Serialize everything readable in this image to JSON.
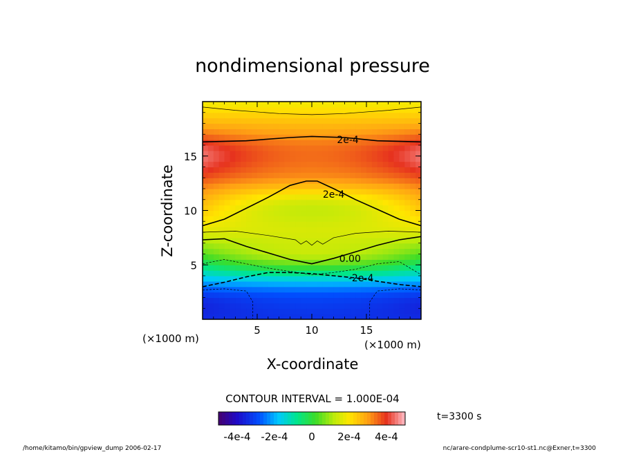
{
  "chart_data": {
    "type": "heatmap",
    "title": "nondimensional pressure",
    "xlabel": "X-coordinate",
    "ylabel": "Z-coordinate",
    "x_unit": "(×1000 m)",
    "y_unit": "(×1000 m)",
    "xlim": [
      0,
      20
    ],
    "ylim": [
      0,
      20
    ],
    "x_ticks": [
      5,
      10,
      15
    ],
    "y_ticks": [
      5,
      10,
      15
    ],
    "x_tick_labels": [
      "5",
      "10",
      "15"
    ],
    "y_tick_labels": [
      "5",
      "10",
      "15"
    ],
    "grid": false,
    "contour_interval_text": "CONTOUR INTERVAL = 1.000E-04",
    "colorbar": {
      "min": -0.0005,
      "max": 0.0005,
      "labels": [
        "-4e-4",
        "-2e-4",
        "0",
        "2e-4",
        "4e-4"
      ],
      "label_values": [
        -0.0004,
        -0.0002,
        0,
        0.0002,
        0.0004
      ]
    },
    "contour_labels": [
      {
        "text": "2e-4",
        "x": 13.3,
        "z": 16.5
      },
      {
        "text": "2e-4",
        "x": 12.0,
        "z": 11.5
      },
      {
        "text": "0.00",
        "x": 13.5,
        "z": 5.6
      },
      {
        "text": "-2e-4",
        "x": 14.5,
        "z": 3.8
      }
    ],
    "contours": [
      {
        "level": 0.0003,
        "points": [
          [
            0,
            19.5
          ],
          [
            3,
            19.2
          ],
          [
            7,
            18.9
          ],
          [
            10,
            18.8
          ],
          [
            13,
            18.9
          ],
          [
            17,
            19.2
          ],
          [
            20,
            19.5
          ]
        ]
      },
      {
        "level": 0.0002,
        "points": [
          [
            0,
            16.3
          ],
          [
            4,
            16.4
          ],
          [
            8,
            16.7
          ],
          [
            10,
            16.8
          ],
          [
            13,
            16.7
          ],
          [
            16,
            16.4
          ],
          [
            20,
            16.3
          ]
        ]
      },
      {
        "level": 0.0002,
        "points": [
          [
            0,
            8.6
          ],
          [
            2,
            9.2
          ],
          [
            4,
            10.2
          ],
          [
            6,
            11.2
          ],
          [
            8,
            12.3
          ],
          [
            9.5,
            12.7
          ],
          [
            10.5,
            12.7
          ],
          [
            12,
            12.0
          ],
          [
            14,
            11.0
          ],
          [
            16,
            10.1
          ],
          [
            18,
            9.2
          ],
          [
            20,
            8.6
          ]
        ]
      },
      {
        "level": 0.0001,
        "points": [
          [
            0,
            8.0
          ],
          [
            3,
            8.1
          ],
          [
            6,
            7.7
          ],
          [
            8.5,
            7.3
          ],
          [
            9,
            6.9
          ],
          [
            9.5,
            7.2
          ],
          [
            10,
            6.8
          ],
          [
            10.5,
            7.2
          ],
          [
            11,
            6.9
          ],
          [
            12,
            7.5
          ],
          [
            14,
            7.9
          ],
          [
            17,
            8.1
          ],
          [
            20,
            8.0
          ]
        ]
      },
      {
        "level": 0,
        "points": [
          [
            0,
            7.3
          ],
          [
            2,
            7.4
          ],
          [
            4,
            6.7
          ],
          [
            6,
            6.1
          ],
          [
            8,
            5.5
          ],
          [
            10,
            5.1
          ],
          [
            12,
            5.6
          ],
          [
            14,
            6.2
          ],
          [
            16,
            6.8
          ],
          [
            18,
            7.3
          ],
          [
            20,
            7.6
          ]
        ]
      },
      {
        "level": -0.0001,
        "points": [
          [
            0,
            5.1
          ],
          [
            2,
            5.5
          ],
          [
            4,
            5.1
          ],
          [
            6,
            4.7
          ],
          [
            8,
            4.4
          ],
          [
            10,
            4.1
          ],
          [
            12,
            4.3
          ],
          [
            14,
            4.6
          ],
          [
            16,
            5.1
          ],
          [
            18,
            5.3
          ],
          [
            20,
            4.1
          ]
        ]
      },
      {
        "level": -0.0002,
        "points": [
          [
            0,
            3.0
          ],
          [
            2,
            3.4
          ],
          [
            4,
            3.9
          ],
          [
            6,
            4.3
          ],
          [
            8,
            4.3
          ],
          [
            10,
            4.2
          ],
          [
            12,
            4.0
          ],
          [
            14,
            3.8
          ],
          [
            16,
            3.5
          ],
          [
            18,
            3.2
          ],
          [
            20,
            3.0
          ]
        ]
      },
      {
        "level": -0.0003,
        "points": [
          [
            0,
            2.7
          ],
          [
            2,
            2.8
          ],
          [
            4,
            2.6
          ],
          [
            4.6,
            1.6
          ],
          [
            4.6,
            0
          ]
        ]
      },
      {
        "level": -0.0003,
        "points": [
          [
            20,
            2.7
          ],
          [
            18,
            2.8
          ],
          [
            16,
            2.6
          ],
          [
            15.3,
            1.6
          ],
          [
            15.3,
            0
          ]
        ]
      }
    ],
    "field_profile": {
      "z": [
        0,
        1,
        2,
        3,
        4,
        5,
        6,
        7,
        8,
        9,
        10,
        11,
        12,
        13,
        14,
        15,
        16,
        17,
        18,
        19,
        20
      ],
      "value": [
        -0.00033,
        -0.00032,
        -0.0003,
        -0.00024,
        -0.00015,
        -5e-05,
        4e-05,
        0.0001,
        0.00016,
        0.0002,
        0.00024,
        0.00027,
        0.0003,
        0.00033,
        0.00034,
        0.00035,
        0.00034,
        0.0003,
        0.00026,
        0.00022,
        0.00018
      ]
    },
    "time_label": "t=3300 s",
    "footer_left": "/home/kitamo/bin/gpview_dump  2006-02-17",
    "footer_right": "nc/arare-condplume-scr10-st1.nc@Exner,t=3300"
  }
}
